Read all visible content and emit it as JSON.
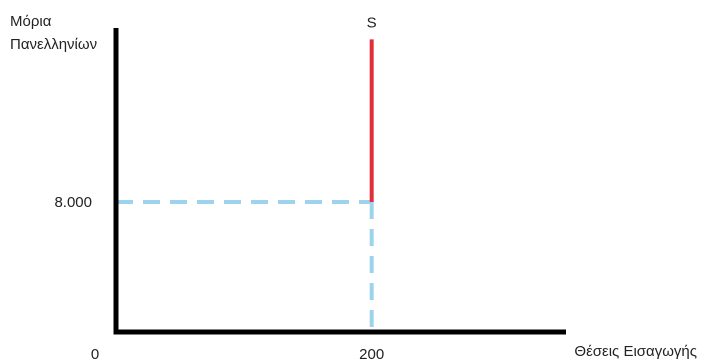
{
  "chart_data": {
    "type": "line",
    "title": "",
    "ylabel_lines": [
      "Μόρια",
      "Πανελληνίων"
    ],
    "xlabel": "Θέσεις Εισαγωγής",
    "origin_label": "0",
    "x_tick": {
      "value": 200,
      "label": "200"
    },
    "y_tick": {
      "value": 8000,
      "label": "8.000"
    },
    "xlim": [
      0,
      352
    ],
    "ylim": [
      0,
      18700
    ],
    "grid": false,
    "series": [
      {
        "name": "S",
        "color": "#e02f3a",
        "points": [
          [
            200,
            8000
          ],
          [
            200,
            18000
          ]
        ]
      }
    ],
    "reference_lines": {
      "color": "#9dd3ec",
      "style": "dashed",
      "horizontal": {
        "y": 8000,
        "x_from": 0,
        "x_to": 200
      },
      "vertical": {
        "x": 200,
        "y_from": 0,
        "y_to": 8000
      }
    },
    "axis_color": "#000000"
  }
}
